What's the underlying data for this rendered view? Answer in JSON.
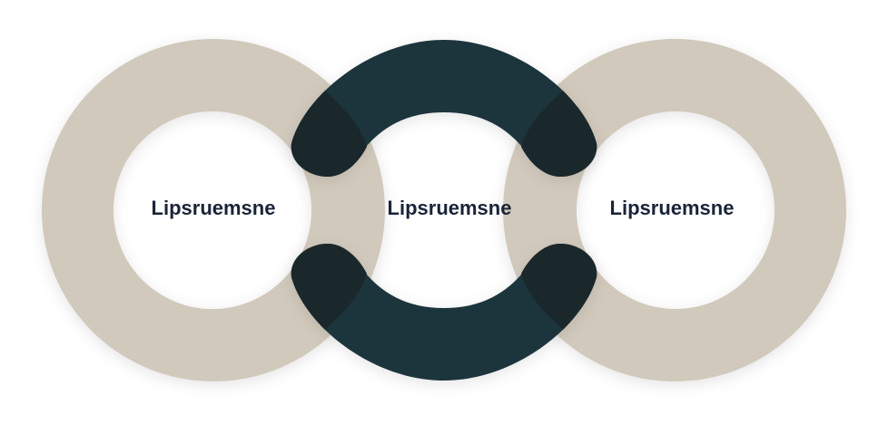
{
  "colors": {
    "beige_ring": "#d1c9bc",
    "dark_ring": "#1e343c",
    "overlap": "#1a282c",
    "label": "#1a2438",
    "background": "#ffffff"
  },
  "rings": [
    {
      "id": "left",
      "label": "Lipsruemsne",
      "style": "beige"
    },
    {
      "id": "center",
      "label": "Lipsruemsne",
      "style": "dark"
    },
    {
      "id": "right",
      "label": "Lipsruemsne",
      "style": "beige"
    }
  ]
}
